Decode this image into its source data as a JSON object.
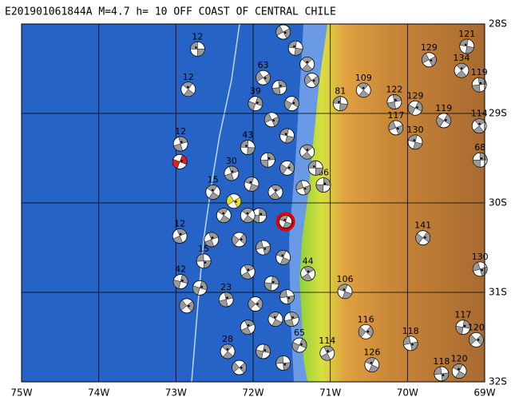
{
  "chart_data": {
    "type": "focal-mechanism-map",
    "title": "E201901061844A M=4.7 h= 10 OFF COAST OF CENTRAL CHILE",
    "xlim": [
      -75,
      -69
    ],
    "ylim": [
      -32,
      -28
    ],
    "xticks": [
      {
        "value": -75,
        "label": "75W"
      },
      {
        "value": -74,
        "label": "74W"
      },
      {
        "value": -73,
        "label": "73W"
      },
      {
        "value": -72,
        "label": "72W"
      },
      {
        "value": -71,
        "label": "71W"
      },
      {
        "value": -70,
        "label": "70W"
      },
      {
        "value": -69,
        "label": "69W"
      }
    ],
    "yticks": [
      {
        "value": -28,
        "label": "28S"
      },
      {
        "value": -29,
        "label": "29S"
      },
      {
        "value": -30,
        "label": "30S"
      },
      {
        "value": -31,
        "label": "31S"
      },
      {
        "value": -32,
        "label": "32S"
      }
    ],
    "grid": true,
    "mechanism_color": "#9a9a9a",
    "main_event": {
      "lon": -71.58,
      "lat": -30.21,
      "color": "#e00000"
    },
    "events": [
      {
        "lon": -72.72,
        "lat": -28.28,
        "label": "12"
      },
      {
        "lon": -72.84,
        "lat": -28.73,
        "label": "12"
      },
      {
        "lon": -72.94,
        "lat": -29.34,
        "label": "12"
      },
      {
        "lon": -72.95,
        "lat": -29.54,
        "color": "#e02020"
      },
      {
        "lon": -72.25,
        "lat": -29.98,
        "color": "#e8e020"
      },
      {
        "lon": -70.87,
        "lat": -28.89,
        "label": "81"
      },
      {
        "lon": -70.57,
        "lat": -28.74,
        "label": "109"
      },
      {
        "lon": -70.17,
        "lat": -28.87,
        "label": "122"
      },
      {
        "lon": -69.9,
        "lat": -28.94,
        "label": "129"
      },
      {
        "lon": -69.72,
        "lat": -28.4,
        "label": "129"
      },
      {
        "lon": -69.23,
        "lat": -28.25,
        "label": "121"
      },
      {
        "lon": -69.3,
        "lat": -28.52,
        "label": "134"
      },
      {
        "lon": -69.07,
        "lat": -28.68,
        "label": "119"
      },
      {
        "lon": -69.53,
        "lat": -29.08,
        "label": "119"
      },
      {
        "lon": -70.15,
        "lat": -29.16,
        "label": "117"
      },
      {
        "lon": -69.9,
        "lat": -29.32,
        "label": "130"
      },
      {
        "lon": -69.07,
        "lat": -29.14,
        "label": "114"
      },
      {
        "lon": -69.06,
        "lat": -29.52,
        "label": "68"
      },
      {
        "lon": -69.8,
        "lat": -30.39,
        "label": "141"
      },
      {
        "lon": -69.06,
        "lat": -30.74,
        "label": "130"
      },
      {
        "lon": -70.81,
        "lat": -30.99,
        "label": "106"
      },
      {
        "lon": -71.29,
        "lat": -30.79,
        "label": "44"
      },
      {
        "lon": -71.09,
        "lat": -29.8,
        "label": "66"
      },
      {
        "lon": -70.54,
        "lat": -31.44,
        "label": "116"
      },
      {
        "lon": -69.96,
        "lat": -31.57,
        "label": "118"
      },
      {
        "lon": -70.46,
        "lat": -31.81,
        "label": "126"
      },
      {
        "lon": -71.04,
        "lat": -31.68,
        "label": "114"
      },
      {
        "lon": -69.28,
        "lat": -31.39,
        "label": "117"
      },
      {
        "lon": -69.11,
        "lat": -31.53,
        "label": "120"
      },
      {
        "lon": -69.56,
        "lat": -31.91,
        "label": "118"
      },
      {
        "lon": -69.33,
        "lat": -31.88,
        "label": "120"
      },
      {
        "lon": -72.95,
        "lat": -30.37,
        "label": "12"
      },
      {
        "lon": -72.94,
        "lat": -30.88,
        "label": "42"
      },
      {
        "lon": -72.86,
        "lat": -31.15
      },
      {
        "lon": -72.64,
        "lat": -30.65,
        "label": "15"
      },
      {
        "lon": -72.52,
        "lat": -29.88,
        "label": "15"
      },
      {
        "lon": -72.28,
        "lat": -29.67,
        "label": "30"
      },
      {
        "lon": -71.97,
        "lat": -28.89,
        "label": "39"
      },
      {
        "lon": -71.87,
        "lat": -28.6,
        "label": "63"
      },
      {
        "lon": -72.07,
        "lat": -29.38,
        "label": "43"
      },
      {
        "lon": -72.33,
        "lat": -31.66,
        "label": "28"
      },
      {
        "lon": -72.35,
        "lat": -31.08,
        "label": "23"
      },
      {
        "lon": -71.4,
        "lat": -31.59,
        "label": "65"
      },
      {
        "lon": -71.61,
        "lat": -28.09
      },
      {
        "lon": -71.45,
        "lat": -28.27
      },
      {
        "lon": -71.3,
        "lat": -28.45
      },
      {
        "lon": -71.66,
        "lat": -28.71
      },
      {
        "lon": -71.5,
        "lat": -28.89
      },
      {
        "lon": -71.76,
        "lat": -29.07
      },
      {
        "lon": -71.56,
        "lat": -29.25
      },
      {
        "lon": -71.3,
        "lat": -29.43
      },
      {
        "lon": -71.81,
        "lat": -29.52
      },
      {
        "lon": -71.56,
        "lat": -29.61
      },
      {
        "lon": -71.35,
        "lat": -29.83
      },
      {
        "lon": -72.02,
        "lat": -29.79
      },
      {
        "lon": -71.71,
        "lat": -29.88
      },
      {
        "lon": -71.92,
        "lat": -30.14
      },
      {
        "lon": -72.18,
        "lat": -30.41
      },
      {
        "lon": -71.87,
        "lat": -30.5
      },
      {
        "lon": -71.61,
        "lat": -30.61
      },
      {
        "lon": -72.07,
        "lat": -30.77
      },
      {
        "lon": -71.76,
        "lat": -30.9
      },
      {
        "lon": -71.97,
        "lat": -31.13
      },
      {
        "lon": -71.56,
        "lat": -31.05
      },
      {
        "lon": -71.71,
        "lat": -31.3
      },
      {
        "lon": -72.07,
        "lat": -31.39
      },
      {
        "lon": -71.87,
        "lat": -31.66
      },
      {
        "lon": -72.18,
        "lat": -31.84
      },
      {
        "lon": -71.61,
        "lat": -31.79
      },
      {
        "lon": -72.38,
        "lat": -30.14
      },
      {
        "lon": -72.54,
        "lat": -30.41
      },
      {
        "lon": -72.69,
        "lat": -30.95
      },
      {
        "lon": -71.24,
        "lat": -28.63
      },
      {
        "lon": -71.19,
        "lat": -29.61
      },
      {
        "lon": -72.07,
        "lat": -30.14
      },
      {
        "lon": -71.5,
        "lat": -31.3
      }
    ]
  }
}
